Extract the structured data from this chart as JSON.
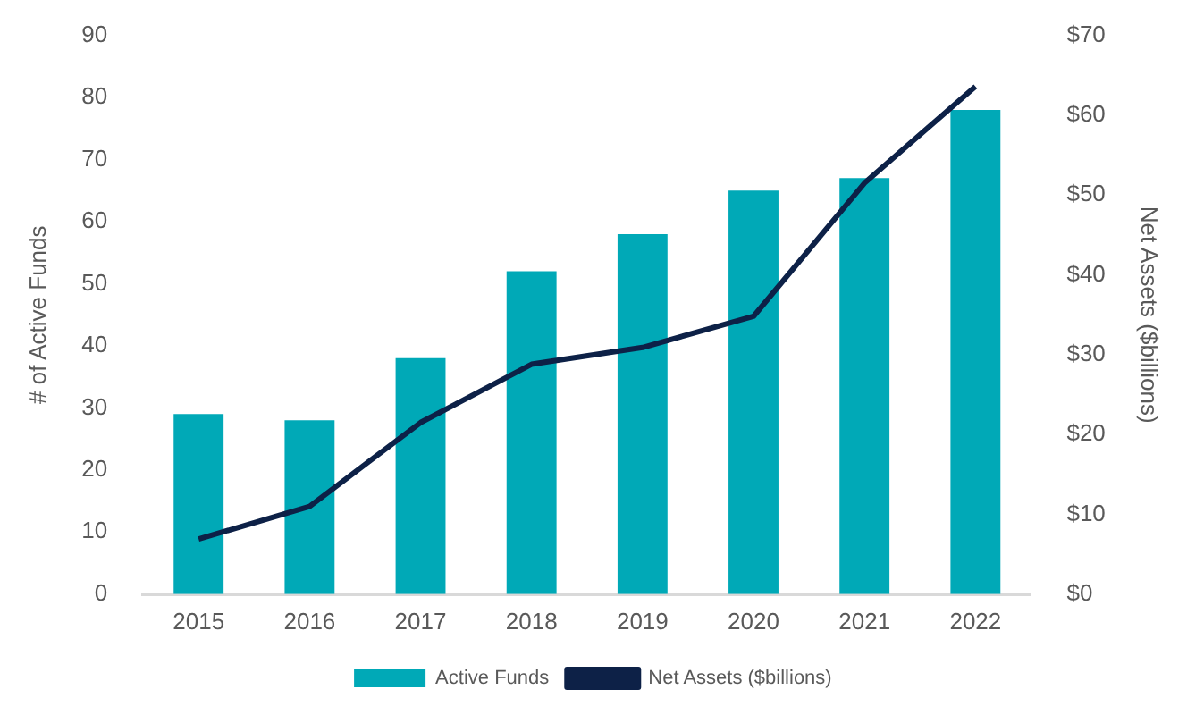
{
  "chart_data": {
    "type": "bar",
    "ylabel": "# of Active Funds",
    "y2label": "Net Assets ($billions)",
    "categories": [
      "2015",
      "2016",
      "2017",
      "2018",
      "2019",
      "2020",
      "2021",
      "2022"
    ],
    "series": [
      {
        "name": "Active Funds",
        "color": "#00a9b7",
        "values": [
          29,
          28,
          38,
          52,
          58,
          65,
          67,
          78
        ]
      },
      {
        "name": "Net Assets ($billions)",
        "type": "line",
        "axis": "y2",
        "color": "#0d2147",
        "values": [
          6.9,
          11,
          21.5,
          28.8,
          30.9,
          34.8,
          51.5,
          63.6
        ]
      }
    ],
    "ylim": [
      0,
      90
    ],
    "yticks": [
      0,
      10,
      20,
      30,
      40,
      50,
      60,
      70,
      80,
      90
    ],
    "y2lim": [
      0,
      70
    ],
    "y2ticks": [
      {
        "value": 0,
        "label": "$0"
      },
      {
        "value": 10,
        "label": "$10"
      },
      {
        "value": 20,
        "label": "$20"
      },
      {
        "value": 30,
        "label": "$30"
      },
      {
        "value": 40,
        "label": "$40"
      },
      {
        "value": 50,
        "label": "$50"
      },
      {
        "value": 60,
        "label": "$60"
      },
      {
        "value": 70,
        "label": "$70"
      }
    ],
    "grid": false,
    "legend": "bottom",
    "marker": "none",
    "line_style": "solid"
  }
}
